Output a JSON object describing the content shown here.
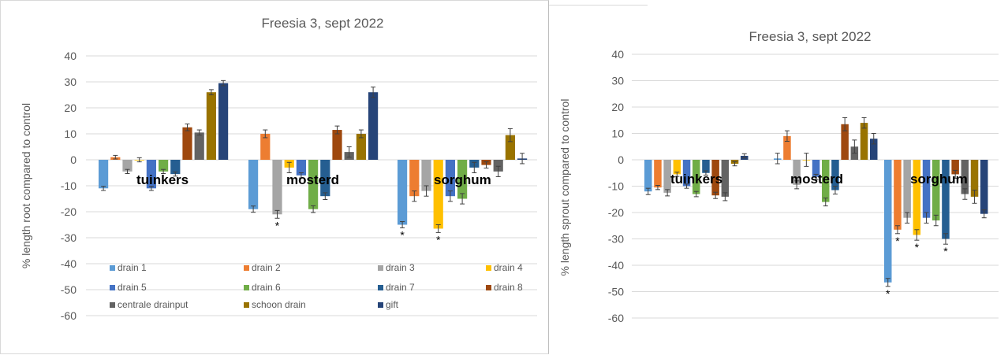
{
  "series_colors": {
    "drain 1": "#5b9bd5",
    "drain 2": "#ed7d31",
    "drain 3": "#a5a5a5",
    "drain 4": "#ffc000",
    "drain 5": "#4472c4",
    "drain 6": "#70ad47",
    "drain 7": "#255e91",
    "drain 8": "#9e480e",
    "centrale drainput": "#636363",
    "schoon drain": "#997300",
    "gift": "#264478"
  },
  "chart_data": [
    {
      "type": "bar",
      "title": "Freesia 3, sept 2022",
      "ylabel": "% length root compared to control",
      "xlabel": "",
      "ylim": [
        -60,
        40
      ],
      "yticks": [
        40,
        30,
        20,
        10,
        0,
        -10,
        -20,
        -30,
        -40,
        -50,
        -60
      ],
      "grid": true,
      "legend": "bottom",
      "categories": [
        "tuinkers",
        "mosterd",
        "sorghum"
      ],
      "series": [
        {
          "name": "drain 1",
          "values": [
            -11,
            -19,
            -25
          ],
          "errors": [
            0.8,
            1.2,
            1.2
          ],
          "significant": [
            false,
            false,
            true
          ]
        },
        {
          "name": "drain 2",
          "values": [
            1,
            10,
            -14
          ],
          "errors": [
            0.7,
            1.5,
            2
          ],
          "significant": [
            false,
            false,
            false
          ]
        },
        {
          "name": "drain 3",
          "values": [
            -4.5,
            -21,
            -12
          ],
          "errors": [
            0.8,
            1.5,
            2
          ],
          "significant": [
            false,
            true,
            false
          ]
        },
        {
          "name": "drain 4",
          "values": [
            0,
            -3,
            -26.5
          ],
          "errors": [
            0.8,
            2,
            1.5
          ],
          "significant": [
            false,
            false,
            true
          ]
        },
        {
          "name": "drain 5",
          "values": [
            -11,
            -6,
            -14
          ],
          "errors": [
            0.8,
            1,
            2
          ],
          "significant": [
            false,
            false,
            false
          ]
        },
        {
          "name": "drain 6",
          "values": [
            -4.5,
            -19,
            -15
          ],
          "errors": [
            0.8,
            1.3,
            2
          ],
          "significant": [
            false,
            false,
            false
          ]
        },
        {
          "name": "drain 7",
          "values": [
            -5.5,
            -14,
            -3
          ],
          "errors": [
            0.8,
            1.3,
            2
          ],
          "significant": [
            false,
            false,
            false
          ]
        },
        {
          "name": "drain 8",
          "values": [
            12.5,
            11.5,
            -2
          ],
          "errors": [
            1.3,
            1.5,
            1.2
          ],
          "significant": [
            false,
            false,
            false
          ]
        },
        {
          "name": "centrale drainput",
          "values": [
            10.5,
            3,
            -4.5
          ],
          "errors": [
            1,
            2,
            2
          ],
          "significant": [
            false,
            false,
            false
          ]
        },
        {
          "name": "schoon drain",
          "values": [
            26,
            10,
            9.5
          ],
          "errors": [
            1,
            1.5,
            2.5
          ],
          "significant": [
            false,
            false,
            false
          ]
        },
        {
          "name": "gift",
          "values": [
            29.5,
            26,
            0.5
          ],
          "errors": [
            1,
            2,
            2
          ],
          "significant": [
            false,
            false,
            false
          ]
        }
      ]
    },
    {
      "type": "bar",
      "title": "Freesia 3, sept 2022",
      "ylabel": "% length sprout compared to control",
      "xlabel": "",
      "ylim": [
        -60,
        40
      ],
      "yticks": [
        40,
        30,
        20,
        10,
        0,
        -10,
        -20,
        -30,
        -40,
        -50,
        -60
      ],
      "grid": true,
      "legend": "none",
      "categories": [
        "tuinkers",
        "mosterd",
        "sorghum"
      ],
      "series": [
        {
          "name": "drain 1",
          "values": [
            -12,
            0.5,
            -46.5
          ],
          "errors": [
            1.2,
            2,
            1.5
          ],
          "significant": [
            false,
            false,
            true
          ]
        },
        {
          "name": "drain 2",
          "values": [
            -10.5,
            9,
            -26.5
          ],
          "errors": [
            0.8,
            2,
            1.5
          ],
          "significant": [
            false,
            false,
            true
          ]
        },
        {
          "name": "drain 3",
          "values": [
            -12.5,
            -9.5,
            -22
          ],
          "errors": [
            1.2,
            1.5,
            2
          ],
          "significant": [
            false,
            false,
            false
          ]
        },
        {
          "name": "drain 4",
          "values": [
            -5.5,
            0,
            -28.5
          ],
          "errors": [
            0.8,
            2.5,
            2
          ],
          "significant": [
            false,
            false,
            true
          ]
        },
        {
          "name": "drain 5",
          "values": [
            -10,
            -6.5,
            -22
          ],
          "errors": [
            0.8,
            1,
            2
          ],
          "significant": [
            false,
            false,
            false
          ]
        },
        {
          "name": "drain 6",
          "values": [
            -13,
            -16,
            -23
          ],
          "errors": [
            1,
            1.5,
            2
          ],
          "significant": [
            false,
            false,
            false
          ]
        },
        {
          "name": "drain 7",
          "values": [
            -5,
            -11.5,
            -30
          ],
          "errors": [
            0.8,
            1.5,
            2
          ],
          "significant": [
            false,
            false,
            true
          ]
        },
        {
          "name": "drain 8",
          "values": [
            -13.5,
            13.5,
            -5.5
          ],
          "errors": [
            1.2,
            2.5,
            1.5
          ],
          "significant": [
            false,
            false,
            false
          ]
        },
        {
          "name": "centrale drainput",
          "values": [
            -14,
            5,
            -13
          ],
          "errors": [
            1.5,
            2.5,
            2
          ],
          "significant": [
            false,
            false,
            false
          ]
        },
        {
          "name": "schoon drain",
          "values": [
            -1.5,
            14,
            -14
          ],
          "errors": [
            0.8,
            2,
            2.5
          ],
          "significant": [
            false,
            false,
            false
          ]
        },
        {
          "name": "gift",
          "values": [
            1.5,
            8,
            -20.5
          ],
          "errors": [
            0.8,
            2,
            1.5
          ],
          "significant": [
            false,
            false,
            false
          ]
        }
      ]
    }
  ]
}
